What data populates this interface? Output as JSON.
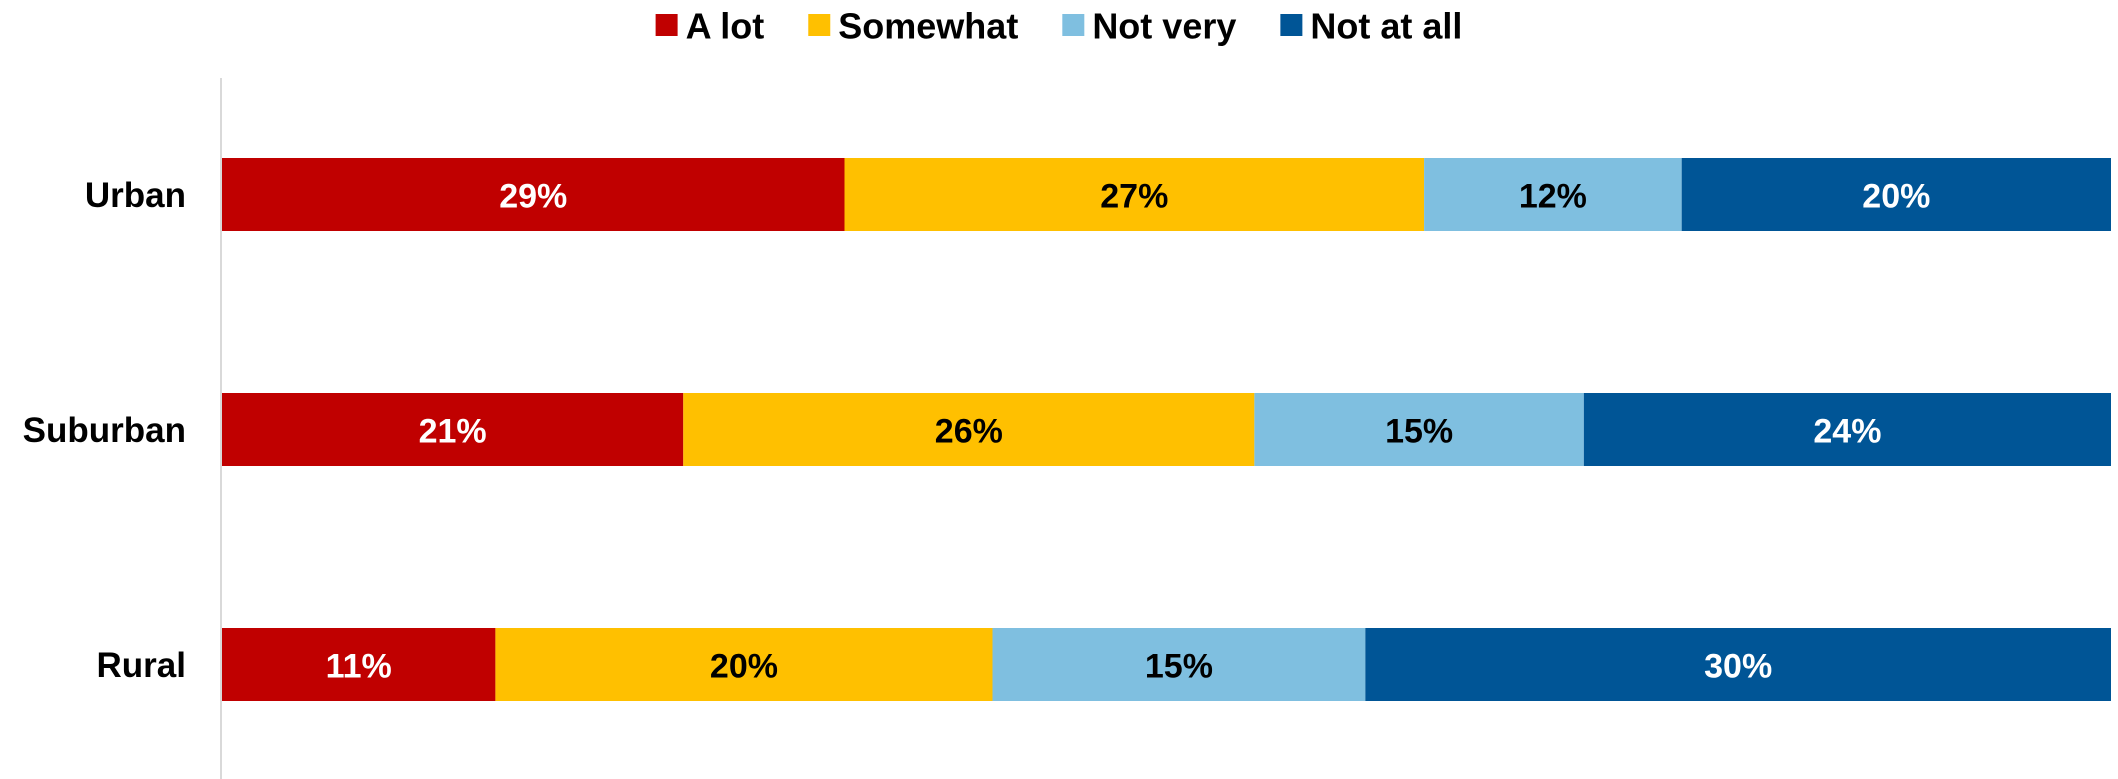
{
  "chart_data": {
    "type": "bar",
    "orientation": "horizontal",
    "stacked": true,
    "categories": [
      "Urban",
      "Suburban",
      "Rural"
    ],
    "series": [
      {
        "name": "A lot",
        "values": [
          29,
          21,
          11
        ],
        "color": "#C00000",
        "label_color": "#FFFFFF"
      },
      {
        "name": "Somewhat",
        "values": [
          27,
          26,
          20
        ],
        "color": "#FFC000",
        "label_color": "#000000"
      },
      {
        "name": "Not very",
        "values": [
          12,
          15,
          15
        ],
        "color": "#7FBFE0",
        "label_color": "#000000"
      },
      {
        "name": "Not at all",
        "values": [
          20,
          24,
          30
        ],
        "color": "#005596",
        "label_color": "#FFFFFF"
      }
    ],
    "data_labels": [
      [
        "29%",
        "21%",
        "11%"
      ],
      [
        "27%",
        "26%",
        "20%"
      ],
      [
        "12%",
        "15%",
        "15%"
      ],
      [
        "20%",
        "24%",
        "30%"
      ]
    ],
    "legend_position": "top",
    "grid": false
  }
}
